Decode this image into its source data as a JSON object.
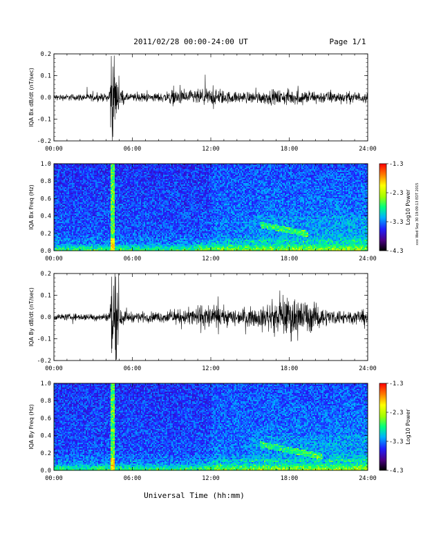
{
  "header": {
    "title": "2011/02/28  00:00-24:00 UT",
    "page": "Page 1/1"
  },
  "footer": {
    "xlabel": "Universal Time (hh:mm)"
  },
  "side_note": "xxx Wed Sep 30 19:09:13 EDT 2015",
  "colors": {
    "colorbar": [
      "#000000",
      "#4b0082",
      "#2020ff",
      "#00b0ff",
      "#00ff80",
      "#a0ff00",
      "#ffff00",
      "#ff8000",
      "#ff0000"
    ]
  },
  "chart_data": [
    {
      "type": "line",
      "ylabel": "IQA Bx dB/dt (nT/sec)",
      "ylim": [
        -0.2,
        0.2
      ],
      "yticks": [
        "0.2",
        "0.1",
        "0.0",
        "-0.1",
        "-0.2"
      ],
      "xticks": [
        "00:00",
        "06:00",
        "12:00",
        "18:00",
        "24:00"
      ],
      "xlim": [
        0,
        24
      ],
      "activity": [
        [
          0,
          0.012
        ],
        [
          4.2,
          0.015
        ],
        [
          4.4,
          0.2
        ],
        [
          4.6,
          0.13
        ],
        [
          5.0,
          0.04
        ],
        [
          5.5,
          0.015
        ],
        [
          8.5,
          0.018
        ],
        [
          9.0,
          0.03
        ],
        [
          10.0,
          0.025
        ],
        [
          12.0,
          0.035
        ],
        [
          12.5,
          0.03
        ],
        [
          14.0,
          0.02
        ],
        [
          16.0,
          0.025
        ],
        [
          18.0,
          0.03
        ],
        [
          20.0,
          0.025
        ],
        [
          22.0,
          0.022
        ],
        [
          24.0,
          0.02
        ]
      ]
    },
    {
      "type": "heatmap",
      "ylabel": "IQA Bx Freq (Hz)",
      "ylim": [
        0.0,
        1.0
      ],
      "yticks": [
        "1.0",
        "0.8",
        "0.6",
        "0.4",
        "0.2",
        "0.0"
      ],
      "xticks": [
        "00:00",
        "06:00",
        "12:00",
        "18:00",
        "24:00"
      ],
      "xlim": [
        0,
        24
      ],
      "colorbar_label": "Log10 Power",
      "colorbar_ticks": [
        "-1.3",
        "-2.3",
        "-3.3",
        "-4.3"
      ],
      "power_range": [
        -4.3,
        -1.3
      ],
      "burst": [
        4.3,
        4.7
      ],
      "band": {
        "x": [
          15.8,
          19.5
        ],
        "freq": 0.3
      }
    },
    {
      "type": "line",
      "ylabel": "IQA By dB/dt (nT/sec)",
      "ylim": [
        -0.2,
        0.2
      ],
      "yticks": [
        "0.2",
        "0.1",
        "0.0",
        "-0.1",
        "-0.2"
      ],
      "xticks": [
        "00:00",
        "06:00",
        "12:00",
        "18:00",
        "24:00"
      ],
      "xlim": [
        0,
        24
      ],
      "activity": [
        [
          0,
          0.012
        ],
        [
          4.2,
          0.015
        ],
        [
          4.4,
          0.2
        ],
        [
          4.7,
          0.2
        ],
        [
          5.0,
          0.05
        ],
        [
          5.5,
          0.02
        ],
        [
          8.0,
          0.02
        ],
        [
          10.0,
          0.03
        ],
        [
          11.5,
          0.05
        ],
        [
          12.5,
          0.04
        ],
        [
          14.0,
          0.03
        ],
        [
          16.0,
          0.04
        ],
        [
          17.5,
          0.07
        ],
        [
          18.2,
          0.08
        ],
        [
          19.5,
          0.06
        ],
        [
          21.0,
          0.03
        ],
        [
          24.0,
          0.025
        ]
      ]
    },
    {
      "type": "heatmap",
      "ylabel": "IQA By Freq (Hz)",
      "ylim": [
        0.0,
        1.0
      ],
      "yticks": [
        "1.0",
        "0.8",
        "0.6",
        "0.4",
        "0.2",
        "0.0"
      ],
      "xticks": [
        "00:00",
        "06:00",
        "12:00",
        "18:00",
        "24:00"
      ],
      "xlim": [
        0,
        24
      ],
      "colorbar_label": "Log10 Power",
      "colorbar_ticks": [
        "-1.3",
        "-2.3",
        "-3.3",
        "-4.3"
      ],
      "power_range": [
        -4.3,
        -1.3
      ],
      "burst": [
        4.3,
        4.7
      ],
      "band": {
        "x": [
          15.8,
          20.5
        ],
        "freq": 0.3
      }
    }
  ]
}
